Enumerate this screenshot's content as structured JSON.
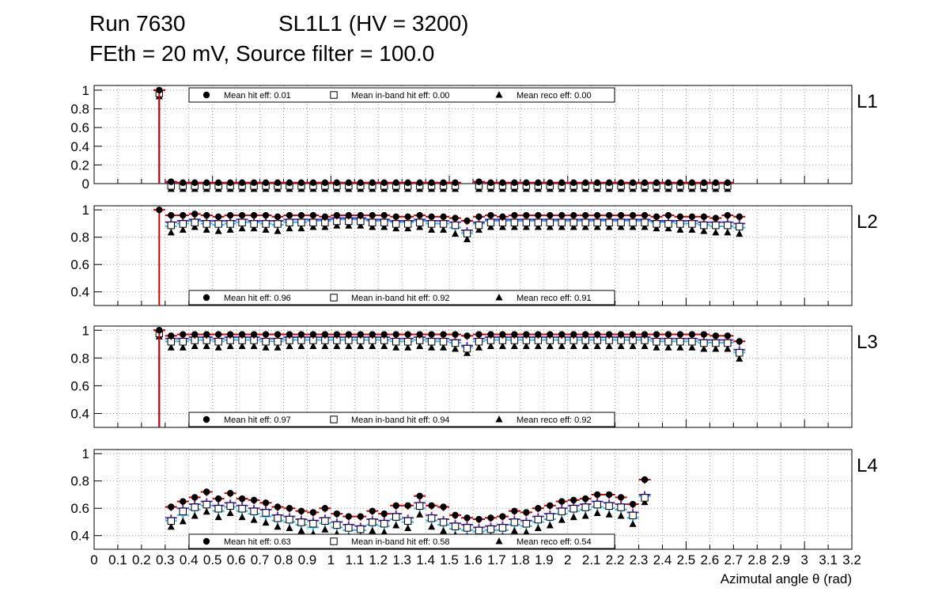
{
  "header": {
    "run": "Run 7630",
    "chamber": "SL1L1 (HV = 3200)",
    "settings": "FEth = 20 mV, Source filter = 100.0"
  },
  "colors": {
    "hit": "#cc0000",
    "inband": "#5a2ecc",
    "reco": "#33bbee",
    "marker": "#000000"
  },
  "chart_data": {
    "type": "scatter",
    "xlabel": "Azimutal angle θ (rad)",
    "xlim": [
      0,
      3.2
    ],
    "x_ticks": [
      "0",
      "0.1",
      "0.2",
      "0.3",
      "0.4",
      "0.5",
      "0.6",
      "0.7",
      "0.8",
      "0.9",
      "1",
      "1.1",
      "1.2",
      "1.3",
      "1.4",
      "1.5",
      "1.6",
      "1.7",
      "1.8",
      "1.9",
      "2",
      "2.1",
      "2.2",
      "2.3",
      "2.4",
      "2.5",
      "2.6",
      "2.7",
      "2.8",
      "2.9",
      "3",
      "3.1",
      "3.2"
    ],
    "grid": true,
    "legend_position": "top-center (L1), bottom-center (L2–L4)",
    "series_markers": [
      "filled circle",
      "open square",
      "filled triangle"
    ],
    "bin_centers": [
      0.275,
      0.325,
      0.375,
      0.425,
      0.475,
      0.525,
      0.575,
      0.625,
      0.675,
      0.725,
      0.775,
      0.825,
      0.875,
      0.925,
      0.975,
      1.025,
      1.075,
      1.125,
      1.175,
      1.225,
      1.275,
      1.325,
      1.375,
      1.425,
      1.475,
      1.525,
      1.575,
      1.625,
      1.675,
      1.725,
      1.775,
      1.825,
      1.875,
      1.925,
      1.975,
      2.025,
      2.075,
      2.125,
      2.175,
      2.225,
      2.275,
      2.325,
      2.375,
      2.425,
      2.475,
      2.525,
      2.575,
      2.625,
      2.675,
      2.725
    ],
    "panels": [
      {
        "layer": "L1",
        "ylim": [
          0,
          1.05
        ],
        "y_ticks": [
          "0",
          "0.2",
          "0.4",
          "0.6",
          "0.8",
          "1"
        ],
        "legend": [
          "Mean hit  eff: 0.01",
          "Mean in-band hit eff: 0.00",
          "Mean reco eff: 0.00"
        ],
        "legend_pos": "top",
        "hit": [
          1.0,
          0.02,
          0.01,
          0.01,
          0.01,
          0.01,
          0.01,
          0.01,
          0.01,
          0.01,
          0.01,
          0.01,
          0.01,
          0.01,
          0.01,
          0.01,
          0.01,
          0.01,
          0.01,
          0.01,
          0.01,
          0.01,
          0.01,
          0.01,
          0.01,
          0.01,
          null,
          0.02,
          0.01,
          0.01,
          0.01,
          0.01,
          0.01,
          0.01,
          0.01,
          0.01,
          0.01,
          0.01,
          0.01,
          0.01,
          0.01,
          0.01,
          0.01,
          0.01,
          0.01,
          0.01,
          0.01,
          0.01,
          0.01,
          null
        ],
        "inband": [
          1.0,
          0.01,
          0.01,
          0.01,
          0.01,
          0.01,
          0.01,
          0.01,
          0.01,
          0.01,
          0.01,
          0.01,
          0.01,
          0.01,
          0.01,
          0.01,
          0.01,
          0.01,
          0.01,
          0.01,
          0.01,
          0.01,
          0.01,
          0.01,
          0.01,
          0.01,
          null,
          0.01,
          0.01,
          0.01,
          0.01,
          0.01,
          0.01,
          0.01,
          0.01,
          0.01,
          0.01,
          0.01,
          0.01,
          0.01,
          0.01,
          0.01,
          0.01,
          0.01,
          0.01,
          0.01,
          0.01,
          0.01,
          0.01,
          null
        ],
        "reco": [
          1.0,
          0.01,
          0.01,
          0.01,
          0.01,
          0.01,
          0.01,
          0.01,
          0.01,
          0.01,
          0.01,
          0.01,
          0.01,
          0.01,
          0.01,
          0.01,
          0.01,
          0.01,
          0.01,
          0.01,
          0.01,
          0.01,
          0.01,
          0.01,
          0.01,
          0.01,
          null,
          0.01,
          0.01,
          0.01,
          0.01,
          0.01,
          0.01,
          0.01,
          0.01,
          0.01,
          0.01,
          0.01,
          0.01,
          0.01,
          0.01,
          0.01,
          0.01,
          0.01,
          0.01,
          0.01,
          0.01,
          0.01,
          0.01,
          null
        ]
      },
      {
        "layer": "L2",
        "ylim": [
          0.3,
          1.03
        ],
        "y_ticks": [
          "0.4",
          "0.6",
          "0.8",
          "1"
        ],
        "legend": [
          "Mean hit  eff: 0.96",
          "Mean in-band hit eff: 0.92",
          "Mean reco eff: 0.91"
        ],
        "legend_pos": "bottom",
        "hit": [
          1.0,
          0.96,
          0.96,
          0.97,
          0.96,
          0.95,
          0.96,
          0.96,
          0.96,
          0.96,
          0.95,
          0.96,
          0.96,
          0.96,
          0.95,
          0.96,
          0.96,
          0.96,
          0.96,
          0.96,
          0.95,
          0.95,
          0.96,
          0.95,
          0.95,
          0.94,
          0.92,
          0.95,
          0.96,
          0.95,
          0.96,
          0.96,
          0.96,
          0.96,
          0.96,
          0.96,
          0.96,
          0.96,
          0.96,
          0.96,
          0.96,
          0.96,
          0.95,
          0.96,
          0.95,
          0.95,
          0.95,
          0.94,
          0.96,
          0.95
        ],
        "inband": [
          null,
          0.91,
          0.92,
          0.93,
          0.92,
          0.92,
          0.92,
          0.93,
          0.92,
          0.92,
          0.92,
          0.93,
          0.93,
          0.93,
          0.93,
          0.94,
          0.94,
          0.94,
          0.93,
          0.93,
          0.92,
          0.92,
          0.93,
          0.92,
          0.92,
          0.91,
          0.85,
          0.91,
          0.93,
          0.93,
          0.93,
          0.93,
          0.93,
          0.93,
          0.93,
          0.93,
          0.93,
          0.93,
          0.93,
          0.93,
          0.93,
          0.93,
          0.92,
          0.92,
          0.92,
          0.92,
          0.91,
          0.91,
          0.91,
          0.9
        ],
        "reco": [
          null,
          0.88,
          0.9,
          0.92,
          0.9,
          0.89,
          0.9,
          0.91,
          0.91,
          0.9,
          0.89,
          0.91,
          0.91,
          0.92,
          0.92,
          0.93,
          0.93,
          0.93,
          0.92,
          0.92,
          0.91,
          0.91,
          0.92,
          0.9,
          0.9,
          0.87,
          0.83,
          0.9,
          0.92,
          0.92,
          0.92,
          0.92,
          0.92,
          0.92,
          0.92,
          0.92,
          0.92,
          0.92,
          0.92,
          0.92,
          0.92,
          0.92,
          0.91,
          0.91,
          0.9,
          0.9,
          0.89,
          0.88,
          0.88,
          0.87
        ]
      },
      {
        "layer": "L3",
        "ylim": [
          0.3,
          1.03
        ],
        "y_ticks": [
          "0.4",
          "0.6",
          "0.8",
          "1"
        ],
        "legend": [
          "Mean hit  eff: 0.97",
          "Mean in-band hit eff: 0.94",
          "Mean reco eff: 0.92"
        ],
        "legend_pos": "bottom",
        "hit": [
          1.0,
          0.96,
          0.97,
          0.97,
          0.97,
          0.97,
          0.97,
          0.97,
          0.97,
          0.97,
          0.97,
          0.97,
          0.97,
          0.97,
          0.97,
          0.97,
          0.97,
          0.97,
          0.97,
          0.97,
          0.97,
          0.97,
          0.97,
          0.97,
          0.97,
          0.97,
          0.96,
          0.97,
          0.97,
          0.97,
          0.97,
          0.97,
          0.97,
          0.97,
          0.97,
          0.97,
          0.97,
          0.97,
          0.97,
          0.97,
          0.97,
          0.97,
          0.97,
          0.97,
          0.97,
          0.97,
          0.97,
          0.96,
          0.96,
          0.92
        ],
        "inband": [
          1.0,
          0.94,
          0.94,
          0.95,
          0.95,
          0.94,
          0.95,
          0.95,
          0.95,
          0.94,
          0.94,
          0.95,
          0.95,
          0.95,
          0.95,
          0.95,
          0.95,
          0.95,
          0.95,
          0.95,
          0.94,
          0.94,
          0.95,
          0.94,
          0.94,
          0.93,
          0.89,
          0.94,
          0.95,
          0.95,
          0.95,
          0.95,
          0.95,
          0.95,
          0.95,
          0.95,
          0.95,
          0.95,
          0.95,
          0.95,
          0.95,
          0.95,
          0.94,
          0.94,
          0.94,
          0.94,
          0.93,
          0.93,
          0.93,
          0.86
        ],
        "reco": [
          1.0,
          0.92,
          0.92,
          0.93,
          0.93,
          0.92,
          0.93,
          0.93,
          0.93,
          0.92,
          0.92,
          0.93,
          0.93,
          0.93,
          0.93,
          0.93,
          0.93,
          0.93,
          0.93,
          0.93,
          0.92,
          0.92,
          0.93,
          0.92,
          0.92,
          0.91,
          0.88,
          0.92,
          0.93,
          0.93,
          0.93,
          0.93,
          0.93,
          0.93,
          0.93,
          0.93,
          0.93,
          0.93,
          0.93,
          0.93,
          0.93,
          0.93,
          0.92,
          0.92,
          0.92,
          0.92,
          0.91,
          0.91,
          0.91,
          0.84
        ]
      },
      {
        "layer": "L4",
        "ylim": [
          0.3,
          1.03
        ],
        "y_ticks": [
          "0.4",
          "0.6",
          "0.8",
          "1"
        ],
        "legend": [
          "Mean hit  eff: 0.63",
          "Mean in-band hit eff: 0.58",
          "Mean reco eff: 0.54"
        ],
        "legend_pos": "bottom",
        "hit": [
          null,
          0.61,
          0.65,
          0.68,
          0.72,
          0.67,
          0.71,
          0.67,
          0.66,
          0.64,
          0.61,
          0.6,
          0.58,
          0.57,
          0.6,
          0.56,
          0.54,
          0.54,
          0.58,
          0.56,
          0.62,
          0.62,
          0.69,
          0.62,
          0.61,
          0.55,
          0.53,
          0.52,
          0.53,
          0.54,
          0.58,
          0.57,
          0.6,
          0.62,
          0.65,
          0.66,
          0.67,
          0.7,
          0.7,
          0.68,
          0.63,
          0.81,
          null,
          null,
          null,
          null,
          null,
          null,
          null,
          null
        ],
        "inband": [
          null,
          0.53,
          0.6,
          0.63,
          0.65,
          0.62,
          0.64,
          0.62,
          0.6,
          0.59,
          0.55,
          0.54,
          0.52,
          0.51,
          0.53,
          0.5,
          0.48,
          0.47,
          0.52,
          0.51,
          0.56,
          0.53,
          0.64,
          0.55,
          0.52,
          0.49,
          0.48,
          0.46,
          0.47,
          0.48,
          0.52,
          0.51,
          0.54,
          0.56,
          0.6,
          0.62,
          0.63,
          0.65,
          0.64,
          0.63,
          0.57,
          0.7,
          null,
          null,
          null,
          null,
          null,
          null,
          null,
          null
        ],
        "reco": [
          null,
          0.51,
          0.55,
          0.59,
          0.62,
          0.58,
          0.61,
          0.58,
          0.56,
          0.54,
          0.51,
          0.5,
          0.48,
          0.46,
          0.49,
          0.46,
          0.44,
          0.44,
          0.48,
          0.47,
          0.52,
          0.5,
          0.6,
          0.51,
          0.48,
          0.45,
          0.44,
          0.43,
          0.44,
          0.44,
          0.48,
          0.47,
          0.5,
          0.52,
          0.56,
          0.58,
          0.59,
          0.61,
          0.6,
          0.59,
          0.53,
          0.69,
          null,
          null,
          null,
          null,
          null,
          null,
          null,
          null
        ]
      }
    ]
  }
}
